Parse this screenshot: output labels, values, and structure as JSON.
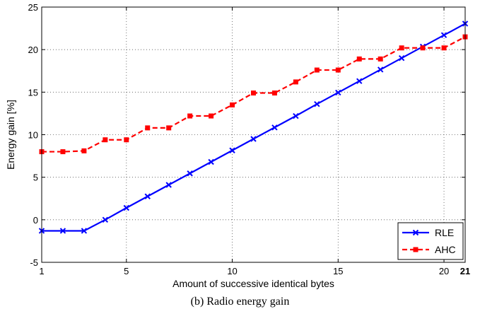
{
  "caption": "(b) Radio energy gain",
  "chart_data": {
    "type": "line",
    "title": "",
    "xlabel": "Amount of successive identical bytes",
    "ylabel": "Energy gain [%]",
    "xlim": [
      1,
      21
    ],
    "ylim": [
      -5,
      25
    ],
    "xticks": [
      1,
      5,
      10,
      15,
      20,
      21
    ],
    "xtick_labels": [
      "1",
      "5",
      "10",
      "15",
      "20",
      "21"
    ],
    "yticks": [
      -5,
      0,
      5,
      10,
      15,
      20,
      25
    ],
    "ytick_labels": [
      "-5",
      "0",
      "5",
      "10",
      "15",
      "20",
      "25"
    ],
    "grid": true,
    "legend_position": "bottom-right",
    "x": [
      1,
      2,
      3,
      4,
      5,
      6,
      7,
      8,
      9,
      10,
      11,
      12,
      13,
      14,
      15,
      16,
      17,
      18,
      19,
      20,
      21
    ],
    "series": [
      {
        "name": "RLE",
        "color": "#0000ff",
        "line_style": "solid",
        "marker": "x",
        "values": [
          -1.3,
          -1.3,
          -1.3,
          0.0,
          1.4,
          2.75,
          4.1,
          5.45,
          6.8,
          8.15,
          9.5,
          10.85,
          12.2,
          13.6,
          14.95,
          16.3,
          17.65,
          19.0,
          20.35,
          21.7,
          23.05
        ]
      },
      {
        "name": "AHC",
        "color": "#ff0000",
        "line_style": "dashed",
        "marker": "square",
        "values": [
          8.0,
          8.0,
          8.1,
          9.4,
          9.4,
          10.8,
          10.8,
          12.2,
          12.2,
          13.5,
          14.9,
          14.9,
          16.2,
          17.6,
          17.6,
          18.9,
          18.9,
          20.2,
          20.2,
          20.2,
          21.5
        ]
      }
    ]
  }
}
